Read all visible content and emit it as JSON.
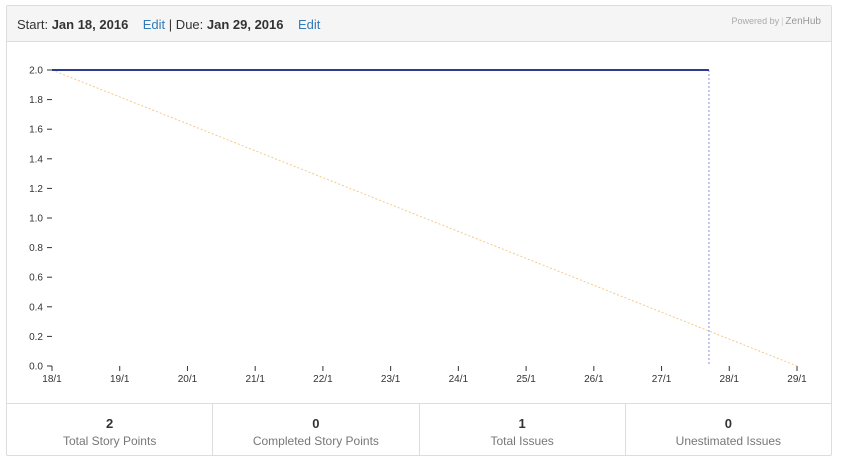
{
  "header": {
    "start_prefix": "Start: ",
    "start_date": "Jan 18, 2016",
    "edit_start": "Edit",
    "separator": "|",
    "due_prefix": " Due: ",
    "due_date": "Jan 29, 2016",
    "edit_due": "Edit",
    "powered_by": "Powered by",
    "powered_sep": "|",
    "brand": "ZenHub"
  },
  "colors": {
    "actual": "#2e3b8c",
    "ideal": "#f5c98a",
    "today_marker": "#8a8fe0",
    "band": "#f5f5f5"
  },
  "chart_data": {
    "type": "line",
    "title": "",
    "xlabel": "",
    "ylabel": "",
    "categories": [
      "18/1",
      "19/1",
      "20/1",
      "21/1",
      "22/1",
      "23/1",
      "24/1",
      "25/1",
      "26/1",
      "27/1",
      "28/1",
      "29/1"
    ],
    "y_ticks": [
      "0.0",
      "0.2",
      "0.4",
      "0.6",
      "0.8",
      "1.0",
      "1.2",
      "1.4",
      "1.6",
      "1.8",
      "2.0"
    ],
    "ylim": [
      0,
      2
    ],
    "xlim": [
      0,
      11
    ],
    "today_x": 9.7,
    "series": [
      {
        "name": "Ideal",
        "x": [
          0,
          11
        ],
        "values": [
          2.0,
          0.0
        ]
      },
      {
        "name": "Remaining",
        "x": [
          0,
          9.7
        ],
        "values": [
          2.0,
          2.0
        ]
      }
    ]
  },
  "stats": [
    {
      "value": "2",
      "label": "Total Story Points"
    },
    {
      "value": "0",
      "label": "Completed Story Points"
    },
    {
      "value": "1",
      "label": "Total Issues"
    },
    {
      "value": "0",
      "label": "Unestimated Issues"
    }
  ]
}
